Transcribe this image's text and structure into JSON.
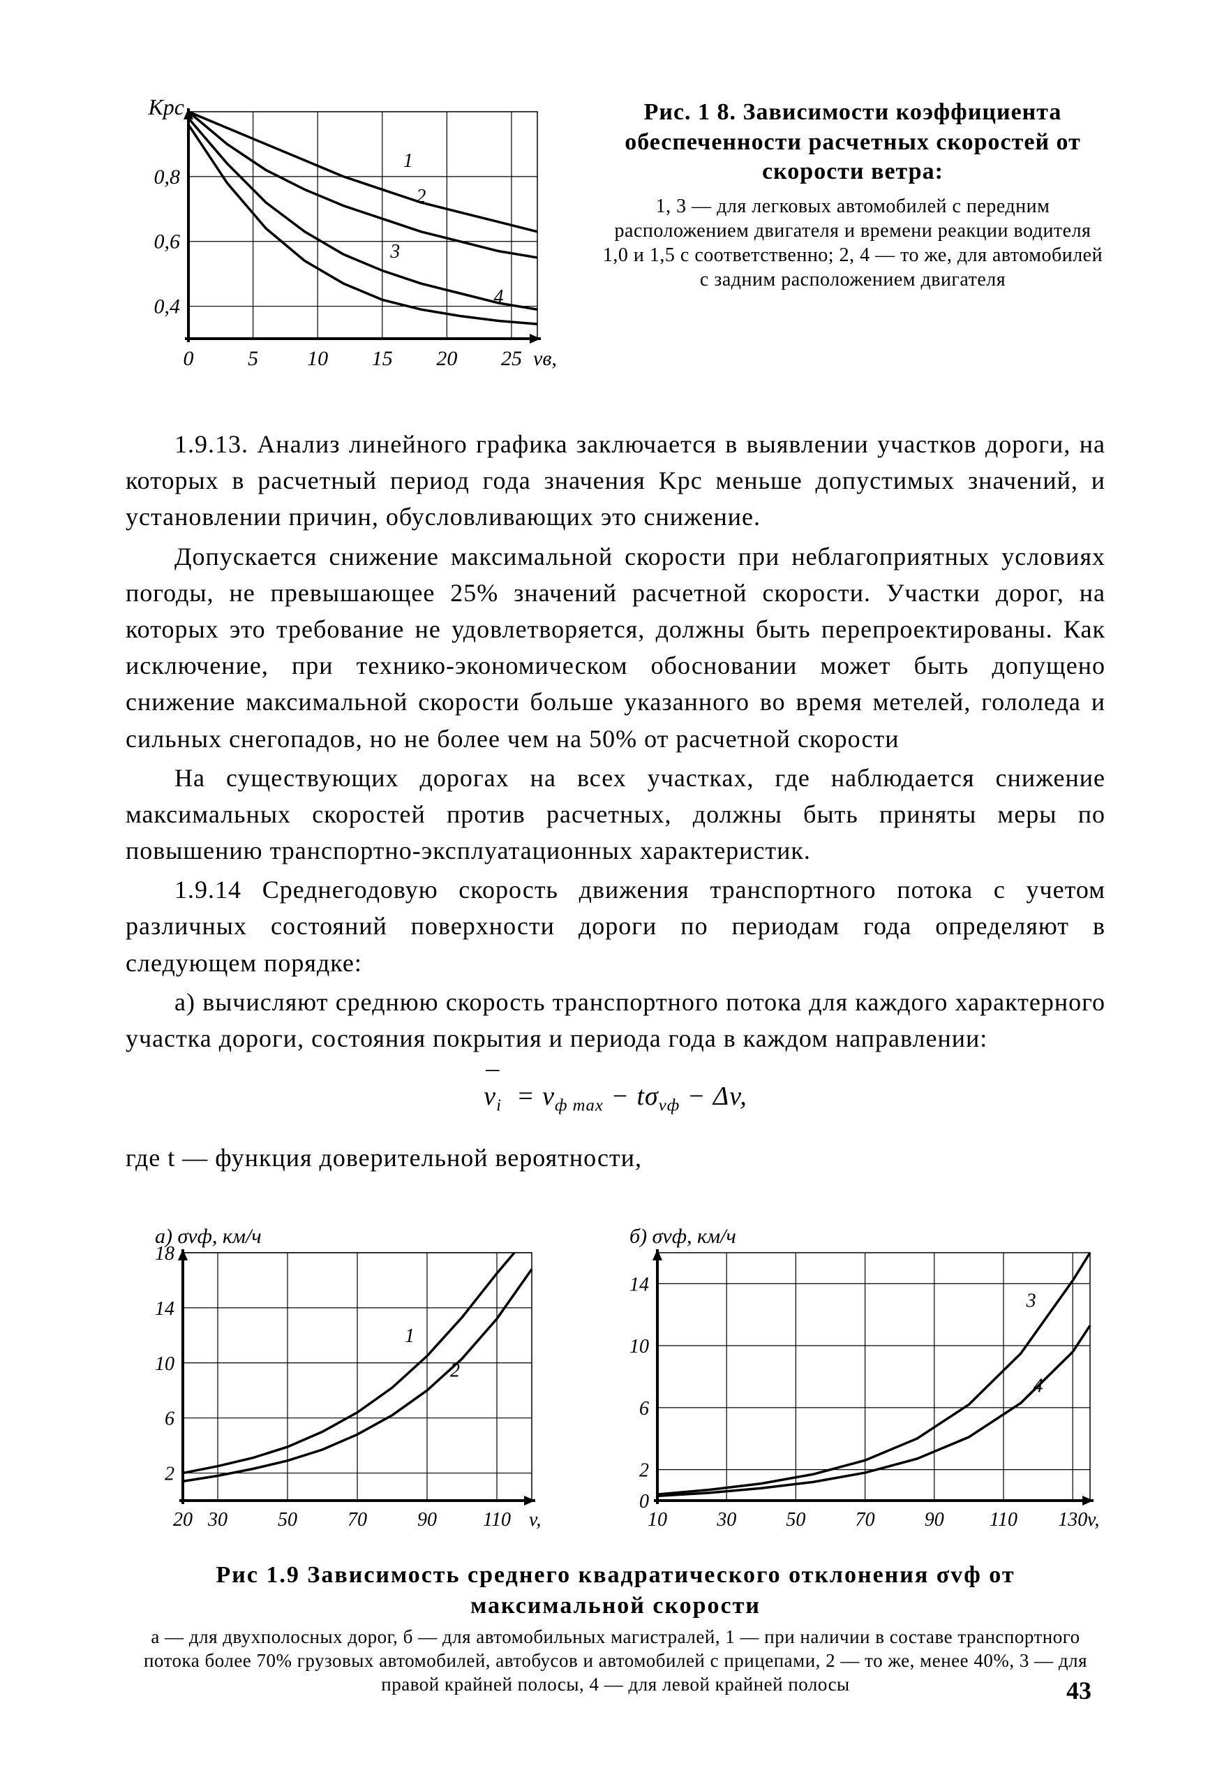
{
  "page_number": "43",
  "fig18": {
    "type": "line",
    "ylabel": "Kрс",
    "xlabel": "vв, м/с",
    "xlim": [
      0,
      27
    ],
    "ylim": [
      0.3,
      1.0
    ],
    "xticks": [
      0,
      5,
      10,
      15,
      20,
      25
    ],
    "xtick_labels": [
      "0",
      "5",
      "10",
      "15",
      "20",
      "25"
    ],
    "yticks": [
      0.4,
      0.6,
      0.8
    ],
    "ytick_labels": [
      "0,4",
      "0,6",
      "0,8"
    ],
    "grid_color": "#000000",
    "background_color": "#ffffff",
    "line_color": "#000000",
    "line_width": 3.5,
    "series": [
      {
        "label": "1",
        "label_x": 17,
        "label_y": 0.83,
        "points": [
          [
            0,
            1.0
          ],
          [
            3,
            0.95
          ],
          [
            6,
            0.9
          ],
          [
            9,
            0.85
          ],
          [
            12,
            0.8
          ],
          [
            15,
            0.76
          ],
          [
            18,
            0.72
          ],
          [
            21,
            0.69
          ],
          [
            24,
            0.66
          ],
          [
            27,
            0.63
          ]
        ]
      },
      {
        "label": "2",
        "label_x": 18,
        "label_y": 0.72,
        "points": [
          [
            0,
            1.0
          ],
          [
            3,
            0.9
          ],
          [
            6,
            0.82
          ],
          [
            9,
            0.76
          ],
          [
            12,
            0.71
          ],
          [
            15,
            0.67
          ],
          [
            18,
            0.63
          ],
          [
            21,
            0.6
          ],
          [
            24,
            0.57
          ],
          [
            27,
            0.55
          ]
        ]
      },
      {
        "label": "3",
        "label_x": 16,
        "label_y": 0.55,
        "points": [
          [
            0,
            0.98
          ],
          [
            3,
            0.84
          ],
          [
            6,
            0.72
          ],
          [
            9,
            0.63
          ],
          [
            12,
            0.56
          ],
          [
            15,
            0.51
          ],
          [
            18,
            0.47
          ],
          [
            21,
            0.44
          ],
          [
            24,
            0.41
          ],
          [
            27,
            0.39
          ]
        ]
      },
      {
        "label": "4",
        "label_x": 24,
        "label_y": 0.41,
        "points": [
          [
            0,
            0.96
          ],
          [
            3,
            0.78
          ],
          [
            6,
            0.64
          ],
          [
            9,
            0.54
          ],
          [
            12,
            0.47
          ],
          [
            15,
            0.42
          ],
          [
            18,
            0.39
          ],
          [
            21,
            0.37
          ],
          [
            24,
            0.355
          ],
          [
            27,
            0.345
          ]
        ]
      }
    ],
    "caption_head": "Рис. 1 8. Зависимости коэффициента обеспеченности расчетных скоростей от скорости ветра:",
    "caption_sub": "1, 3 — для легковых автомобилей с передним расположением двигателя и времени реакции водителя 1,0 и 1,5 с соответственно; 2, 4 — то же, для автомобилей с задним расположением двигателя"
  },
  "paragraphs": {
    "p1": "1.9.13. Анализ линейного графика заключается в выявлении участков дороги, на которых в расчетный период года значения Kрс меньше допустимых значений, и установлении причин, обусловливающих это снижение.",
    "p2": "Допускается снижение максимальной скорости при неблагоприятных условиях погоды, не превышающее 25% значений расчетной скорости. Участки дорог, на которых это требование не удовлетворяется, должны быть перепроектированы. Как исключение, при технико-экономическом обосновании может быть допущено снижение максимальной скорости больше указанного во время метелей, гололеда и сильных снегопадов, но не более чем на 50% от расчетной скорости",
    "p3": "На существующих дорогах на всех участках, где наблюдается снижение максимальных скоростей против расчетных, должны быть приняты меры по повышению транспортно-эксплуатационных характеристик.",
    "p4": "1.9.14 Среднегодовую скорость движения транспортного потока с учетом различных состояний поверхности дороги по периодам года определяют в следующем порядке:",
    "p5": "а) вычисляют среднюю скорость транспортного потока для каждого характерного участка дороги, состояния покрытия и периода года в каждом направлении:",
    "p6": "где t — функция доверительной вероятности,"
  },
  "equation": "v̄ᵢ = vф max − tσvф − Δv,",
  "fig19": {
    "caption_head": "Рис 1.9 Зависимость среднего квадратического отклонения σvф от максимальной скорости",
    "caption_sub": "а — для двухполосных дорог, б — для автомобильных магистралей, 1 — при наличии в составе транспортного потока более 70% грузовых автомобилей, автобусов и автомобилей с прицепами, 2 — то же, менее 40%, 3 — для правой крайней полосы, 4 — для левой крайней полосы",
    "panel_a": {
      "type": "line",
      "title": "а) σvф, км/ч",
      "xlabel": "v, км/ч",
      "xlim": [
        20,
        120
      ],
      "ylim": [
        0,
        18
      ],
      "xticks": [
        20,
        30,
        50,
        70,
        90,
        110
      ],
      "xtick_labels": [
        "20",
        "30",
        "50",
        "70",
        "90",
        "110"
      ],
      "yticks": [
        2,
        6,
        10,
        14,
        18
      ],
      "ytick_labels": [
        "2",
        "6",
        "10",
        "14",
        "18"
      ],
      "grid_color": "#000000",
      "line_color": "#000000",
      "line_width": 3.5,
      "series": [
        {
          "label": "1",
          "label_x": 85,
          "label_y": 11.5,
          "points": [
            [
              20,
              2.0
            ],
            [
              30,
              2.5
            ],
            [
              40,
              3.1
            ],
            [
              50,
              3.9
            ],
            [
              60,
              5.0
            ],
            [
              70,
              6.4
            ],
            [
              80,
              8.2
            ],
            [
              90,
              10.5
            ],
            [
              100,
              13.3
            ],
            [
              110,
              16.5
            ],
            [
              115,
              18
            ]
          ]
        },
        {
          "label": "2",
          "label_x": 98,
          "label_y": 9.0,
          "points": [
            [
              20,
              1.4
            ],
            [
              30,
              1.8
            ],
            [
              40,
              2.3
            ],
            [
              50,
              2.9
            ],
            [
              60,
              3.7
            ],
            [
              70,
              4.8
            ],
            [
              80,
              6.2
            ],
            [
              90,
              8.0
            ],
            [
              100,
              10.3
            ],
            [
              110,
              13.2
            ],
            [
              120,
              16.8
            ]
          ]
        }
      ]
    },
    "panel_b": {
      "type": "line",
      "title": "б) σvф, км/ч",
      "xlabel": "v, км/ч",
      "xlim": [
        10,
        135
      ],
      "ylim": [
        0,
        16
      ],
      "xticks": [
        10,
        30,
        50,
        70,
        90,
        110,
        130
      ],
      "xtick_labels": [
        "10",
        "30",
        "50",
        "70",
        "90",
        "110",
        "130"
      ],
      "yticks": [
        0,
        2,
        6,
        10,
        14
      ],
      "ytick_labels": [
        "0",
        "2",
        "6",
        "10",
        "14"
      ],
      "grid_color": "#000000",
      "line_color": "#000000",
      "line_width": 3.5,
      "series": [
        {
          "label": "3",
          "label_x": 118,
          "label_y": 12.5,
          "points": [
            [
              10,
              0.4
            ],
            [
              25,
              0.7
            ],
            [
              40,
              1.1
            ],
            [
              55,
              1.7
            ],
            [
              70,
              2.6
            ],
            [
              85,
              4.0
            ],
            [
              100,
              6.2
            ],
            [
              115,
              9.5
            ],
            [
              130,
              14.2
            ],
            [
              135,
              16
            ]
          ]
        },
        {
          "label": "4",
          "label_x": 120,
          "label_y": 7.0,
          "points": [
            [
              10,
              0.3
            ],
            [
              25,
              0.5
            ],
            [
              40,
              0.8
            ],
            [
              55,
              1.2
            ],
            [
              70,
              1.8
            ],
            [
              85,
              2.7
            ],
            [
              100,
              4.1
            ],
            [
              115,
              6.3
            ],
            [
              130,
              9.6
            ],
            [
              135,
              11.3
            ]
          ]
        }
      ]
    }
  }
}
